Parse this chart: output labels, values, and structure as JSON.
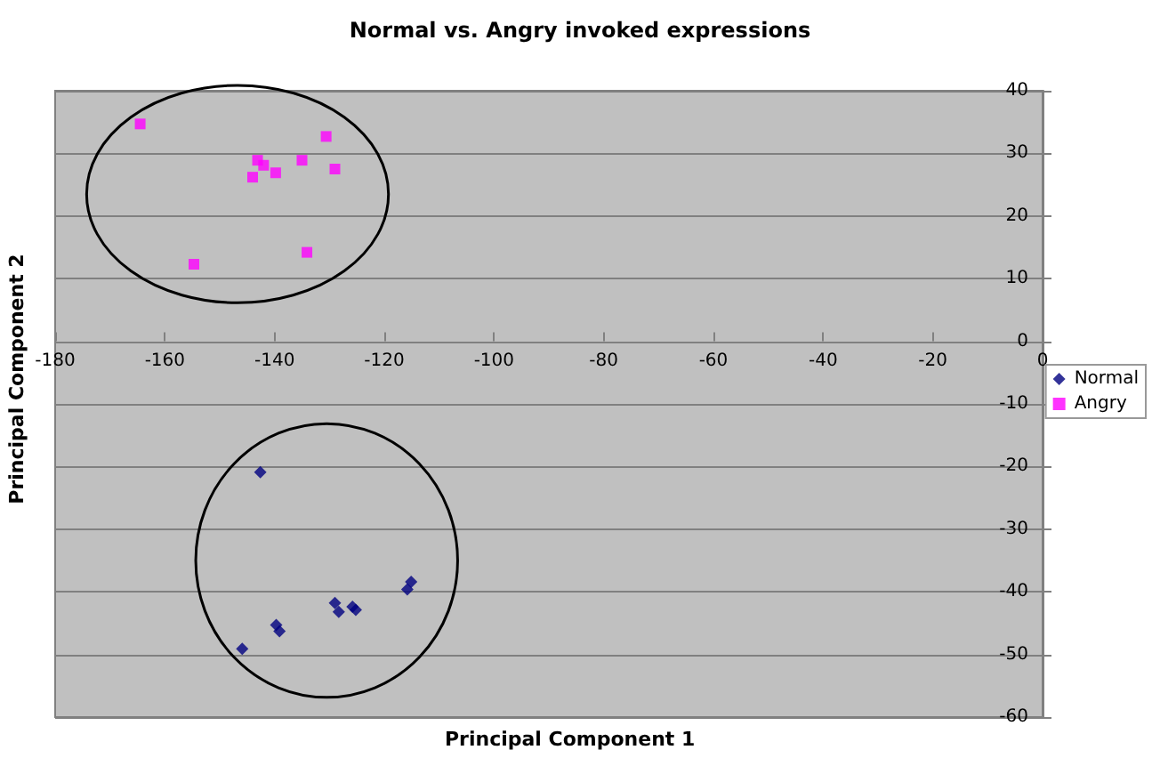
{
  "chart_data": {
    "type": "scatter",
    "title": "Normal vs. Angry invoked expressions",
    "xlabel": "Principal Component 1",
    "ylabel": "Principal Component 2",
    "xlim": [
      -180,
      0
    ],
    "xticks": [
      -180,
      -160,
      -140,
      -120,
      -100,
      -80,
      -60,
      -40,
      -20,
      0
    ],
    "ylim": [
      -60,
      40
    ],
    "yticks": [
      {
        "value": -60,
        "label": "-60"
      },
      {
        "value": -50,
        "label": "-50"
      },
      {
        "value": -40,
        "label": "-40"
      },
      {
        "value": -30,
        "label": "-30"
      },
      {
        "value": -20,
        "label": "-20"
      },
      {
        "value": -10,
        "label": "-10"
      },
      0,
      10,
      20,
      30,
      40
    ],
    "grid": "y",
    "legend": "right",
    "series": [
      {
        "name": "Normal",
        "color": "#000080",
        "marker": "diamond",
        "x": [
          -142.6,
          -145.9,
          -139.7,
          -139.1,
          -129.0,
          -128.3,
          -125.8,
          -125.2,
          -115.8,
          -115.1
        ],
        "values": [
          -20.9,
          -49.1,
          -45.3,
          -46.3,
          -41.8,
          -43.2,
          -42.4,
          -42.9,
          -39.6,
          -38.4
        ]
      },
      {
        "name": "Angry",
        "color": "#ff00ff",
        "marker": "square",
        "x": [
          -164.5,
          -154.7,
          -144.0,
          -143.1,
          -142.0,
          -139.8,
          -135.0,
          -134.1,
          -130.6,
          -129.0
        ],
        "values": [
          34.7,
          12.3,
          26.2,
          28.9,
          28.1,
          26.9,
          28.9,
          14.2,
          32.7,
          27.5
        ]
      }
    ]
  }
}
